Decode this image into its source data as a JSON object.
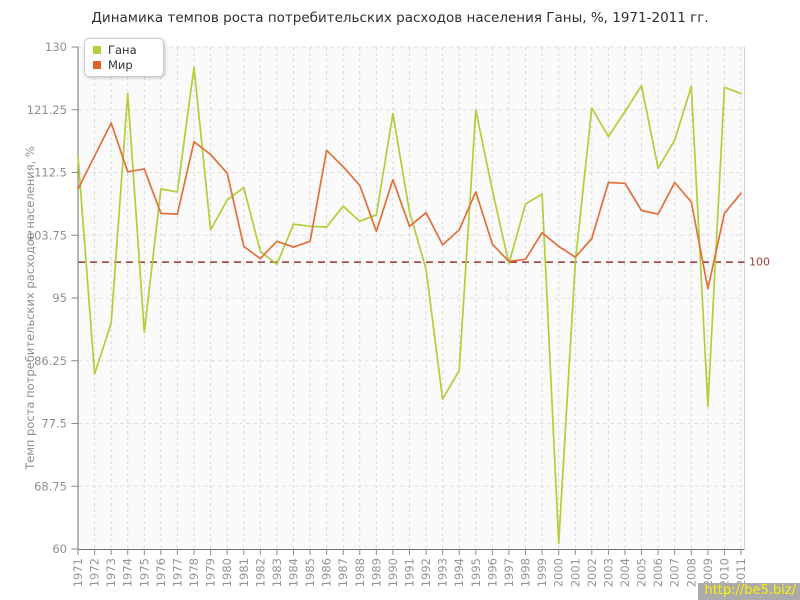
{
  "title": "Динамика темпов роста потребительских расходов населения Ганы, %, 1971-2011 гг.",
  "legend": {
    "items": [
      {
        "label": "Гана",
        "color": "#afd03a"
      },
      {
        "label": "Мир",
        "color": "#e2622b"
      }
    ]
  },
  "watermark": {
    "text": "http://be5.biz/"
  },
  "colors": {
    "ghana_line": "#afd03a",
    "world_line": "#e2703a",
    "reference_line": "#993333",
    "axis": "#707070",
    "tick_label": "#949494",
    "plot_background": "#fafafa"
  },
  "chart_data": {
    "type": "line",
    "title": "Динамика темпов роста потребительских расходов населения Ганы, %, 1971-2011 гг.",
    "xlabel": "",
    "ylabel": "Темп роста потребительских расходов населения, %",
    "ylim": [
      60,
      130
    ],
    "yticks": [
      60,
      68.75,
      77.5,
      86.25,
      95,
      103.75,
      112.5,
      121.25,
      130
    ],
    "grid": true,
    "legend_position": "top-left",
    "x": [
      1971,
      1972,
      1973,
      1974,
      1975,
      1976,
      1977,
      1978,
      1979,
      1980,
      1981,
      1982,
      1983,
      1984,
      1985,
      1986,
      1987,
      1988,
      1989,
      1990,
      1991,
      1992,
      1993,
      1994,
      1995,
      1996,
      1997,
      1998,
      1999,
      2000,
      2001,
      2002,
      2003,
      2004,
      2005,
      2006,
      2007,
      2008,
      2009,
      2010,
      2011
    ],
    "series": [
      {
        "name": "Гана",
        "color": "#afd03a",
        "values": [
          114.8,
          84.4,
          91.5,
          123.5,
          90.2,
          110.2,
          109.8,
          127.2,
          104.5,
          108.7,
          110.4,
          101.5,
          99.7,
          105.3,
          105.0,
          104.9,
          107.8,
          105.7,
          106.6,
          120.7,
          107.0,
          99.0,
          80.9,
          84.9,
          121.2,
          110.0,
          99.8,
          108.1,
          109.5,
          60.8,
          100.0,
          121.5,
          117.5,
          121.0,
          124.6,
          113.1,
          117.0,
          124.5,
          79.9,
          124.4,
          123.5
        ]
      },
      {
        "name": "Мир",
        "color": "#e2703a",
        "values": [
          110.2,
          114.8,
          119.4,
          112.6,
          113.0,
          106.8,
          106.7,
          116.8,
          115.0,
          112.4,
          102.2,
          100.5,
          102.9,
          102.1,
          102.9,
          115.6,
          113.3,
          110.7,
          104.3,
          111.5,
          105.0,
          106.9,
          102.4,
          104.5,
          109.8,
          102.5,
          100.1,
          100.4,
          104.1,
          102.2,
          100.7,
          103.3,
          111.1,
          111.0,
          107.2,
          106.7,
          111.1,
          108.4,
          96.3,
          106.8,
          109.6
        ]
      }
    ],
    "ref_line": {
      "value": 100,
      "label": "100",
      "color": "#993333"
    }
  }
}
